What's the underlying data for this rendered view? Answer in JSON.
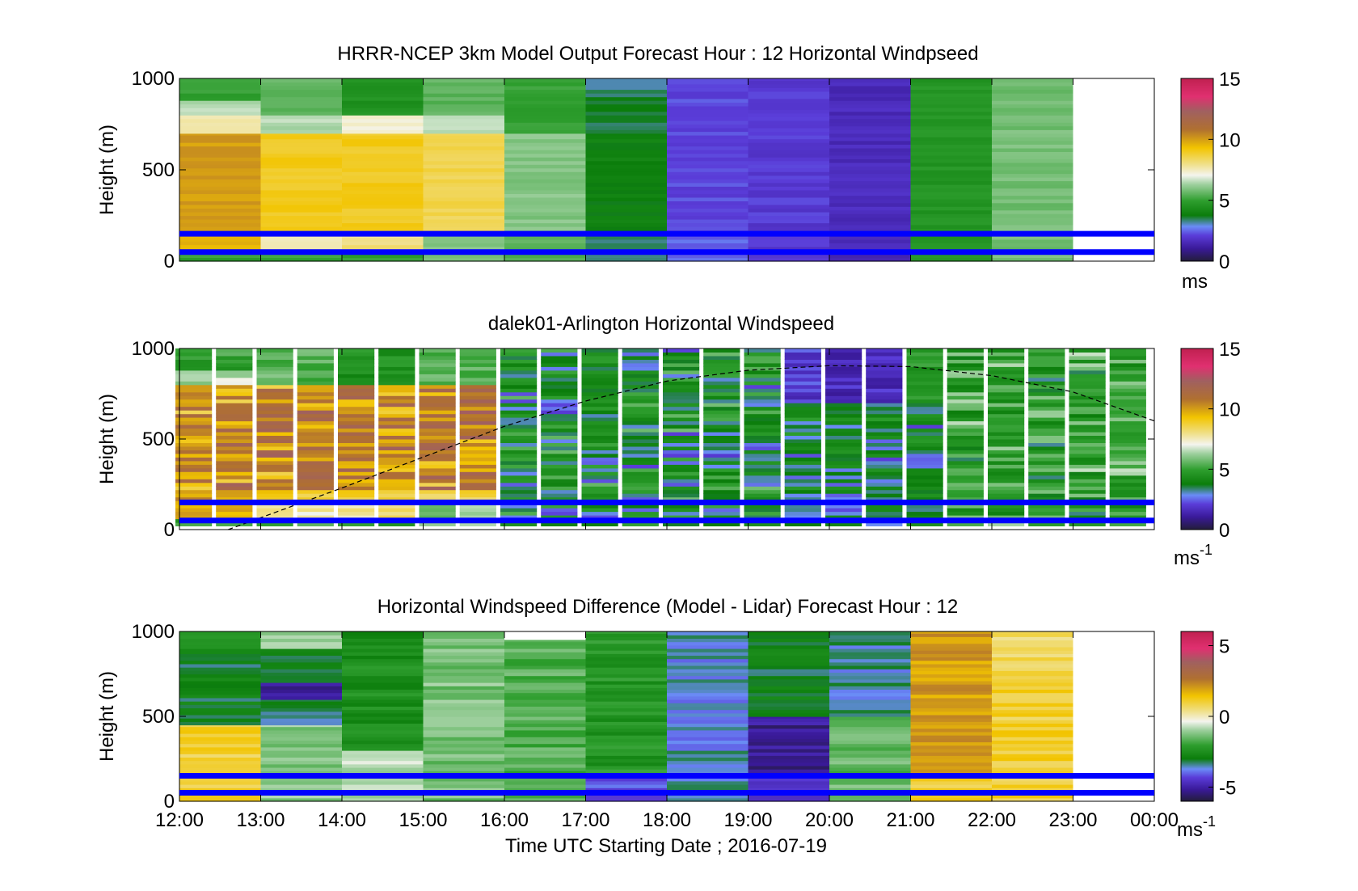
{
  "colors": {
    "level_line": "#0000ff",
    "colormap_stops": [
      "#231c3a",
      "#3a1a9a",
      "#6a8cf6",
      "#5a3cd8",
      "#0b7d0b",
      "#2e9e2e",
      "#9fd09f",
      "#f4f4ee",
      "#f0e08a",
      "#f2c400",
      "#e0a030",
      "#b07030",
      "#c04050",
      "#e02060"
    ]
  },
  "shared_x": {
    "tick_labels": [
      "12:00",
      "13:00",
      "14:00",
      "15:00",
      "16:00",
      "17:00",
      "18:00",
      "19:00",
      "20:00",
      "21:00",
      "22:00",
      "23:00",
      "00:00"
    ],
    "xlabel": "Time UTC  Starting Date ; 2016-07-19"
  },
  "chart_data": [
    {
      "type": "heatmap",
      "id": "model",
      "title": "HRRR-NCEP 3km Model Output   Forecast Hour : 12 Horizontal Windpseed",
      "ylabel": "Height (m)",
      "ylim": [
        0,
        1000
      ],
      "yticks": [
        "0",
        "500",
        "1000"
      ],
      "colorbar": {
        "range": [
          0,
          15
        ],
        "ticks": [
          "0",
          "5",
          "10",
          "15"
        ],
        "unit": "ms"
      },
      "hlines": [
        50,
        150
      ],
      "columns": [
        {
          "from": "12:00",
          "to": "13:00",
          "band_ms": [
            [
              0,
              50,
              5
            ],
            [
              50,
              150,
              9.5
            ],
            [
              150,
              700,
              10
            ],
            [
              700,
              800,
              7.5
            ],
            [
              800,
              880,
              6.5
            ],
            [
              880,
              1000,
              5
            ]
          ]
        },
        {
          "from": "13:00",
          "to": "14:00",
          "band_ms": [
            [
              0,
              50,
              5
            ],
            [
              50,
              150,
              7.5
            ],
            [
              150,
              700,
              9
            ],
            [
              700,
              800,
              6.5
            ],
            [
              800,
              1000,
              5.5
            ]
          ]
        },
        {
          "from": "14:00",
          "to": "15:00",
          "band_ms": [
            [
              0,
              50,
              5
            ],
            [
              50,
              150,
              8
            ],
            [
              150,
              700,
              9
            ],
            [
              700,
              800,
              7.2
            ],
            [
              800,
              1000,
              4.5
            ]
          ]
        },
        {
          "from": "15:00",
          "to": "16:00",
          "band_ms": [
            [
              0,
              150,
              6
            ],
            [
              150,
              700,
              8.5
            ],
            [
              700,
              800,
              6.6
            ],
            [
              800,
              1000,
              5.5
            ]
          ]
        },
        {
          "from": "16:00",
          "to": "17:00",
          "band_ms": [
            [
              0,
              150,
              5.5
            ],
            [
              150,
              700,
              6
            ],
            [
              700,
              1000,
              5
            ]
          ]
        },
        {
          "from": "17:00",
          "to": "18:00",
          "band_ms": [
            [
              0,
              150,
              3.5
            ],
            [
              150,
              700,
              3.9
            ],
            [
              700,
              900,
              3.6
            ],
            [
              900,
              1000,
              3.3
            ]
          ]
        },
        {
          "from": "18:00",
          "to": "19:00",
          "band_ms": [
            [
              0,
              150,
              2.5
            ],
            [
              150,
              1000,
              2.2
            ]
          ]
        },
        {
          "from": "19:00",
          "to": "20:00",
          "band_ms": [
            [
              0,
              150,
              1.9
            ],
            [
              150,
              1000,
              2
            ]
          ]
        },
        {
          "from": "20:00",
          "to": "21:00",
          "band_ms": [
            [
              0,
              1000,
              1.6
            ]
          ]
        },
        {
          "from": "21:00",
          "to": "22:00",
          "band_ms": [
            [
              0,
              1000,
              4.6
            ]
          ]
        },
        {
          "from": "22:00",
          "to": "23:00",
          "band_ms": [
            [
              0,
              1000,
              5.8
            ]
          ]
        }
      ]
    },
    {
      "type": "heatmap",
      "id": "lidar",
      "title": "dalek01-Arlington  Horizontal Windspeed",
      "ylabel": "Height (m)",
      "ylim": [
        0,
        1000
      ],
      "yticks": [
        "0",
        "500",
        "1000"
      ],
      "colorbar": {
        "range": [
          0,
          15
        ],
        "ticks": [
          "0",
          "5",
          "10",
          "15"
        ],
        "unit": "ms",
        "unit_exp": "-1"
      },
      "hlines": [
        50,
        150
      ],
      "boundary_layer_curve_m": [
        [
          12.6,
          0
        ],
        [
          14,
          230
        ],
        [
          15,
          400
        ],
        [
          16,
          570
        ],
        [
          17,
          710
        ],
        [
          18,
          820
        ],
        [
          19,
          880
        ],
        [
          20,
          905
        ],
        [
          21,
          900
        ],
        [
          22,
          850
        ],
        [
          23,
          760
        ],
        [
          24,
          600
        ]
      ]
    },
    {
      "type": "heatmap",
      "id": "difference",
      "title": "Horizontal Windspeed Difference (Model - Lidar) Forecast Hour : 12",
      "ylabel": "Height (m)",
      "ylim": [
        0,
        1000
      ],
      "yticks": [
        "0",
        "500",
        "1000"
      ],
      "colorbar": {
        "range": [
          -6,
          6
        ],
        "ticks": [
          "-5",
          "0",
          "5"
        ],
        "unit": "ms",
        "unit_exp": "-1"
      },
      "hlines": [
        50,
        150
      ],
      "columns": [
        {
          "from": "12:00",
          "to": "13:00",
          "band_diff": [
            [
              0,
              450,
              1
            ],
            [
              450,
              900,
              -3
            ],
            [
              900,
              1000,
              -2.5
            ]
          ]
        },
        {
          "from": "13:00",
          "to": "14:00",
          "band_diff": [
            [
              0,
              450,
              -1.2
            ],
            [
              450,
              600,
              -3.2
            ],
            [
              600,
              700,
              -5
            ],
            [
              700,
              900,
              -3
            ],
            [
              900,
              1000,
              -1
            ]
          ]
        },
        {
          "from": "14:00",
          "to": "15:00",
          "band_diff": [
            [
              0,
              300,
              -0.8
            ],
            [
              300,
              1000,
              -2.5
            ]
          ]
        },
        {
          "from": "15:00",
          "to": "16:00",
          "band_diff": [
            [
              0,
              1000,
              -1.3
            ]
          ]
        },
        {
          "from": "16:00",
          "to": "17:00",
          "band_diff": [
            [
              0,
              950,
              -1.7
            ]
          ]
        },
        {
          "from": "17:00",
          "to": "18:00",
          "band_diff": [
            [
              0,
              150,
              -4
            ],
            [
              150,
              1000,
              -2.3
            ]
          ]
        },
        {
          "from": "18:00",
          "to": "19:00",
          "band_diff": [
            [
              0,
              1000,
              -3.6
            ]
          ]
        },
        {
          "from": "19:00",
          "to": "20:00",
          "band_diff": [
            [
              0,
              150,
              -4.6
            ],
            [
              150,
              500,
              -5.2
            ],
            [
              500,
              1000,
              -3
            ]
          ]
        },
        {
          "from": "20:00",
          "to": "21:00",
          "band_diff": [
            [
              0,
              500,
              -1.5
            ],
            [
              500,
              1000,
              -3.5
            ]
          ]
        },
        {
          "from": "21:00",
          "to": "22:00",
          "band_diff": [
            [
              0,
              150,
              1
            ],
            [
              150,
              1000,
              2
            ]
          ]
        },
        {
          "from": "22:00",
          "to": "23:00",
          "band_diff": [
            [
              0,
              750,
              1
            ],
            [
              750,
              1000,
              0.7
            ]
          ]
        }
      ]
    }
  ]
}
